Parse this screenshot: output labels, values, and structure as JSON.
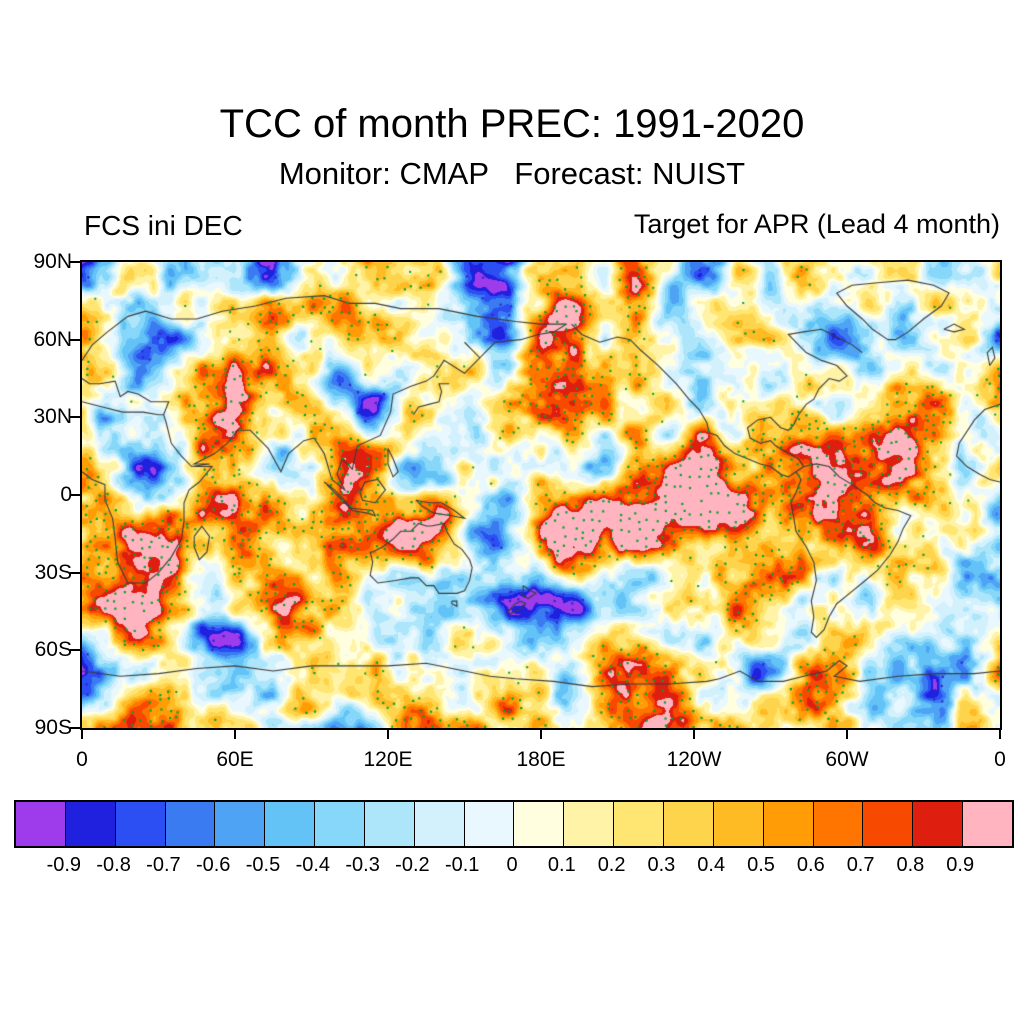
{
  "title": "TCC of month PREC: 1991-2020",
  "subtitle": "Monitor: CMAP   Forecast: NUIST",
  "panel_labels": {
    "left": "FCS ini DEC",
    "right": "Target for APR (Lead 4 month)"
  },
  "chart_data": {
    "type": "heatmap",
    "title": "TCC of month PREC: 1991-2020",
    "statistic": "TCC",
    "variable": "PREC",
    "period": "1991-2020",
    "monitor": "CMAP",
    "forecast": "NUIST",
    "init_month": "DEC",
    "target_month": "APR",
    "lead_months": 4,
    "x_axis": {
      "ticks": [
        "0",
        "60E",
        "120E",
        "180E",
        "120W",
        "60W",
        "0"
      ],
      "lon_range": [
        0,
        360
      ]
    },
    "y_axis": {
      "ticks": [
        "90N",
        "60N",
        "30N",
        "0",
        "30S",
        "60S",
        "90S"
      ],
      "lat_range": [
        90,
        -90
      ]
    },
    "colorbar": {
      "levels": [
        -0.9,
        -0.8,
        -0.7,
        -0.6,
        -0.5,
        -0.4,
        -0.3,
        -0.2,
        -0.1,
        0,
        0.1,
        0.2,
        0.3,
        0.4,
        0.5,
        0.6,
        0.7,
        0.8,
        0.9
      ],
      "labels": [
        "-0.9",
        "-0.8",
        "-0.7",
        "-0.6",
        "-0.5",
        "-0.4",
        "-0.3",
        "-0.2",
        "-0.1",
        "0",
        "0.1",
        "0.2",
        "0.3",
        "0.4",
        "0.5",
        "0.6",
        "0.7",
        "0.8",
        "0.9"
      ],
      "colors": [
        "#9E3BEA",
        "#2020DF",
        "#2B4FF2",
        "#3A7BF2",
        "#4FA3F5",
        "#63C3F7",
        "#86D7FA",
        "#ADE6FB",
        "#D2F1FD",
        "#E9F7FE",
        "#FFFFE0",
        "#FFF3A8",
        "#FFE673",
        "#FFD44D",
        "#FFBB24",
        "#FF9C06",
        "#FF7500",
        "#F74A00",
        "#DE1F10",
        "#FFB4C0"
      ]
    },
    "stipple_positive": "#00A332",
    "stipple_negative": "#2B2BC8",
    "coast_color": "#3C3C3C"
  }
}
